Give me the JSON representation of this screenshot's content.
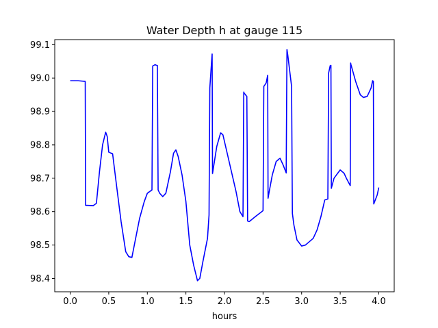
{
  "chart_data": {
    "type": "line",
    "title": "Water Depth h at gauge 115",
    "xlabel": "hours",
    "ylabel": "",
    "xlim": [
      -0.2,
      4.2
    ],
    "ylim": [
      98.36,
      99.115
    ],
    "grid": false,
    "xticks": [
      0.0,
      0.5,
      1.0,
      1.5,
      2.0,
      2.5,
      3.0,
      3.5,
      4.0
    ],
    "xtick_labels": [
      "0.0",
      "0.5",
      "1.0",
      "1.5",
      "2.0",
      "2.5",
      "3.0",
      "3.5",
      "4.0"
    ],
    "yticks": [
      98.4,
      98.5,
      98.6,
      98.7,
      98.8,
      98.9,
      99.0,
      99.1
    ],
    "ytick_labels": [
      "98.4",
      "98.5",
      "98.6",
      "98.7",
      "98.8",
      "98.9",
      "99.0",
      "99.1"
    ],
    "series": [
      {
        "color": "#0000ff",
        "x": [
          0.0,
          0.1,
          0.19,
          0.195,
          0.2,
          0.3,
          0.34,
          0.38,
          0.42,
          0.46,
          0.48,
          0.5,
          0.52,
          0.55,
          0.6,
          0.66,
          0.72,
          0.76,
          0.8,
          0.84,
          0.9,
          0.96,
          1.0,
          1.06,
          1.07,
          1.1,
          1.12,
          1.13,
          1.14,
          1.16,
          1.2,
          1.24,
          1.3,
          1.34,
          1.37,
          1.4,
          1.45,
          1.5,
          1.55,
          1.6,
          1.65,
          1.68,
          1.72,
          1.78,
          1.8,
          1.81,
          1.83,
          1.84,
          1.845,
          1.9,
          1.95,
          1.98,
          2.05,
          2.15,
          2.2,
          2.24,
          2.25,
          2.255,
          2.29,
          2.3,
          2.32,
          2.4,
          2.5,
          2.51,
          2.54,
          2.56,
          2.565,
          2.58,
          2.62,
          2.67,
          2.72,
          2.76,
          2.8,
          2.81,
          2.82,
          2.87,
          2.88,
          2.9,
          2.94,
          3.0,
          3.05,
          3.1,
          3.15,
          3.2,
          3.25,
          3.3,
          3.34,
          3.35,
          3.37,
          3.38,
          3.385,
          3.42,
          3.5,
          3.55,
          3.58,
          3.63,
          3.635,
          3.64,
          3.7,
          3.76,
          3.8,
          3.85,
          3.9,
          3.92,
          3.93,
          3.935,
          3.98,
          4.0
        ],
        "y": [
          98.992,
          98.992,
          98.99,
          98.99,
          98.619,
          98.618,
          98.625,
          98.72,
          98.8,
          98.838,
          98.825,
          98.778,
          98.776,
          98.773,
          98.68,
          98.57,
          98.48,
          98.465,
          98.463,
          98.51,
          98.58,
          98.63,
          98.655,
          98.665,
          99.036,
          99.04,
          99.038,
          99.038,
          98.665,
          98.655,
          98.645,
          98.655,
          98.72,
          98.775,
          98.785,
          98.765,
          98.71,
          98.63,
          98.5,
          98.44,
          98.393,
          98.4,
          98.45,
          98.52,
          98.59,
          98.97,
          99.04,
          99.072,
          98.714,
          98.795,
          98.836,
          98.83,
          98.76,
          98.66,
          98.6,
          98.585,
          98.958,
          98.955,
          98.945,
          98.572,
          98.57,
          98.585,
          98.603,
          98.975,
          98.985,
          99.008,
          98.64,
          98.66,
          98.71,
          98.75,
          98.76,
          98.74,
          98.716,
          99.085,
          99.07,
          98.975,
          98.595,
          98.56,
          98.515,
          98.497,
          98.5,
          98.51,
          98.52,
          98.545,
          98.585,
          98.635,
          98.638,
          99.015,
          99.037,
          99.038,
          98.67,
          98.7,
          98.725,
          98.715,
          98.7,
          98.678,
          99.045,
          99.04,
          98.99,
          98.95,
          98.942,
          98.945,
          98.97,
          98.992,
          98.99,
          98.623,
          98.65,
          98.672
        ]
      }
    ]
  }
}
